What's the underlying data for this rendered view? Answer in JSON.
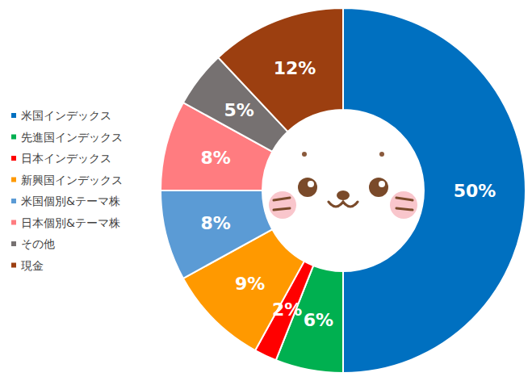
{
  "chart_data": {
    "type": "pie",
    "categories": [
      "米国インデックス",
      "先進国インデックス",
      "日本インデックス",
      "新興国インデックス",
      "米国個別&テーマ株",
      "日本個別&テーマ株",
      "その他",
      "現金"
    ],
    "values": [
      50,
      6,
      2,
      9,
      8,
      8,
      5,
      12
    ],
    "value_labels": [
      "50%",
      "6%",
      "2%",
      "9%",
      "8%",
      "8%",
      "5%",
      "12%"
    ],
    "colors": [
      "#0070c0",
      "#00b050",
      "#ff0000",
      "#ff9900",
      "#5b9bd5",
      "#ff7c80",
      "#767171",
      "#9c3f10"
    ],
    "data_labels": true,
    "legend": "left"
  }
}
